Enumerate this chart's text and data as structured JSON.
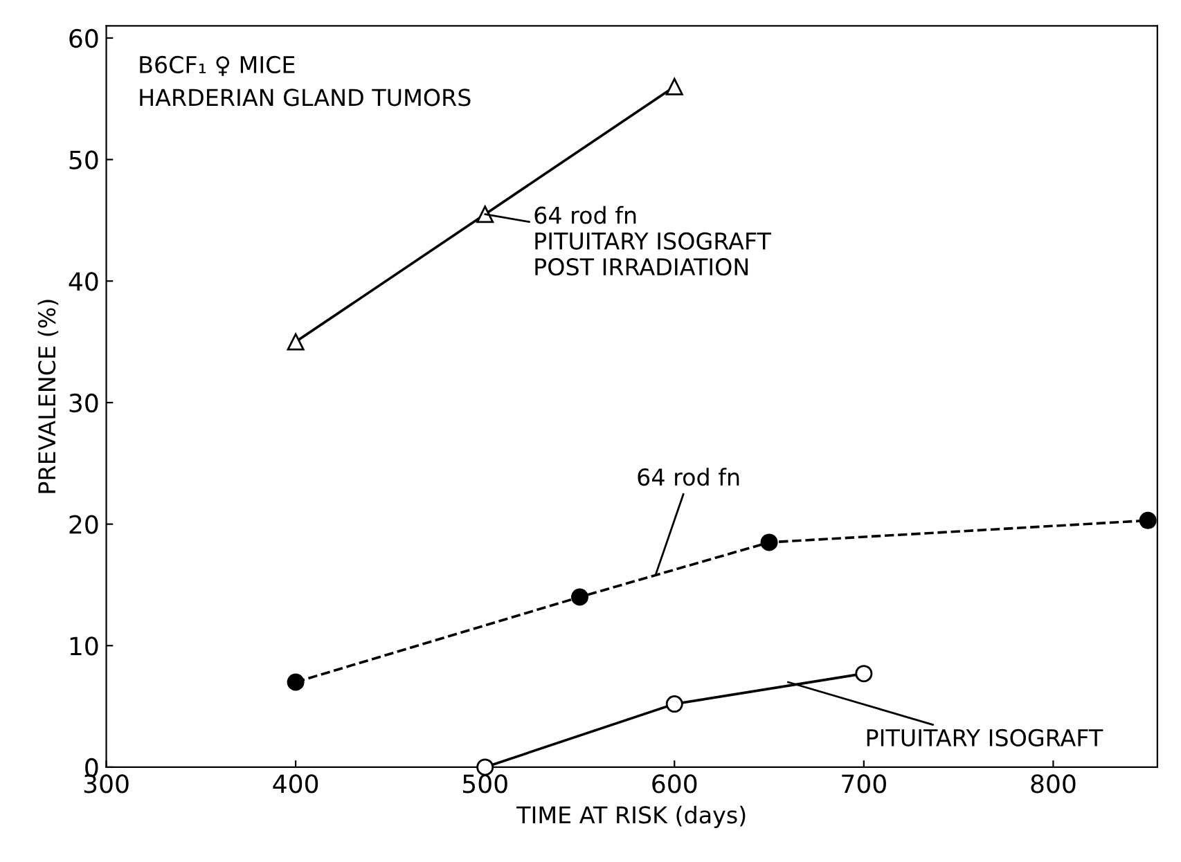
{
  "chart_data": {
    "type": "line",
    "xlabel": "TIME AT RISK (days)",
    "ylabel": "PREVALENCE (%)",
    "xlim": [
      300,
      855
    ],
    "ylim": [
      0,
      61
    ],
    "xticks": [
      300,
      400,
      500,
      600,
      700,
      800
    ],
    "yticks": [
      0,
      10,
      20,
      30,
      40,
      50,
      60
    ],
    "grid": false,
    "legend": false,
    "series": [
      {
        "color": "#000000",
        "marker": "triangle",
        "line_style": "solid",
        "x": [
          400,
          500,
          600
        ],
        "values": [
          35,
          45.5,
          56
        ]
      },
      {
        "color": "#000000",
        "marker": "circle",
        "line_style": "dashed",
        "x": [
          400,
          550,
          650,
          850
        ],
        "values": [
          7,
          14,
          18.5,
          20.3
        ]
      },
      {
        "color": "#000000",
        "marker": "circle",
        "line_style": "solid",
        "x": [
          500,
          600,
          700
        ],
        "values": [
          0,
          5.2,
          7.7
        ]
      }
    ],
    "annotations": [
      "B6CF₁ ♀ MICE\nHARDERIAN GLAND TUMORS",
      {
        "text": "64 rod fn\nPITUITARY ISOGRAFT\nPOST IRRADIATION",
        "x": 500,
        "y": 45.5
      },
      {
        "text": "64 rod fn",
        "x": 590,
        "y": 15.8
      },
      {
        "text": "PITUITARY ISOGRAFT",
        "x": 660,
        "y": 7
      }
    ]
  }
}
